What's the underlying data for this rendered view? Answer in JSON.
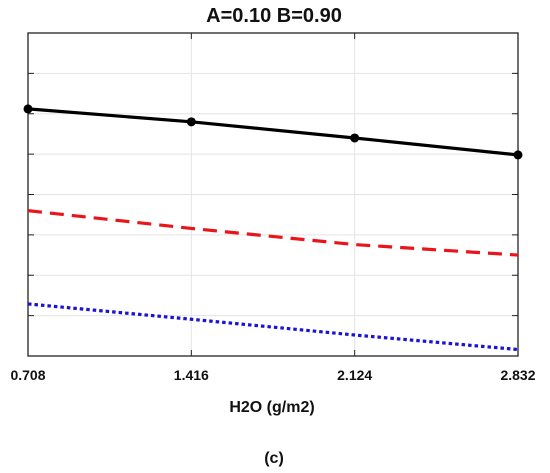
{
  "chart_data": {
    "type": "line",
    "title": "A=0.10   B=0.90",
    "xlabel": "H2O (g/m2)",
    "ylabel": "",
    "x": [
      0.708,
      1.416,
      2.124,
      2.832
    ],
    "x_tick_labels": [
      "0.708",
      "1.416",
      "2.124",
      "2.832"
    ],
    "xlim": [
      0.708,
      2.832
    ],
    "ylim": [
      0,
      8
    ],
    "grid": true,
    "series": [
      {
        "values": [
          6.12,
          5.8,
          5.4,
          4.98
        ],
        "color": "#000000",
        "style": "solid",
        "markers": true
      },
      {
        "values": [
          3.6,
          3.16,
          2.76,
          2.5
        ],
        "color": "#e8161a",
        "style": "dashed",
        "markers": false
      },
      {
        "values": [
          1.29,
          0.91,
          0.52,
          0.16
        ],
        "color": "#1a12d6",
        "style": "dotted",
        "markers": false
      }
    ]
  },
  "caption": "(c)"
}
